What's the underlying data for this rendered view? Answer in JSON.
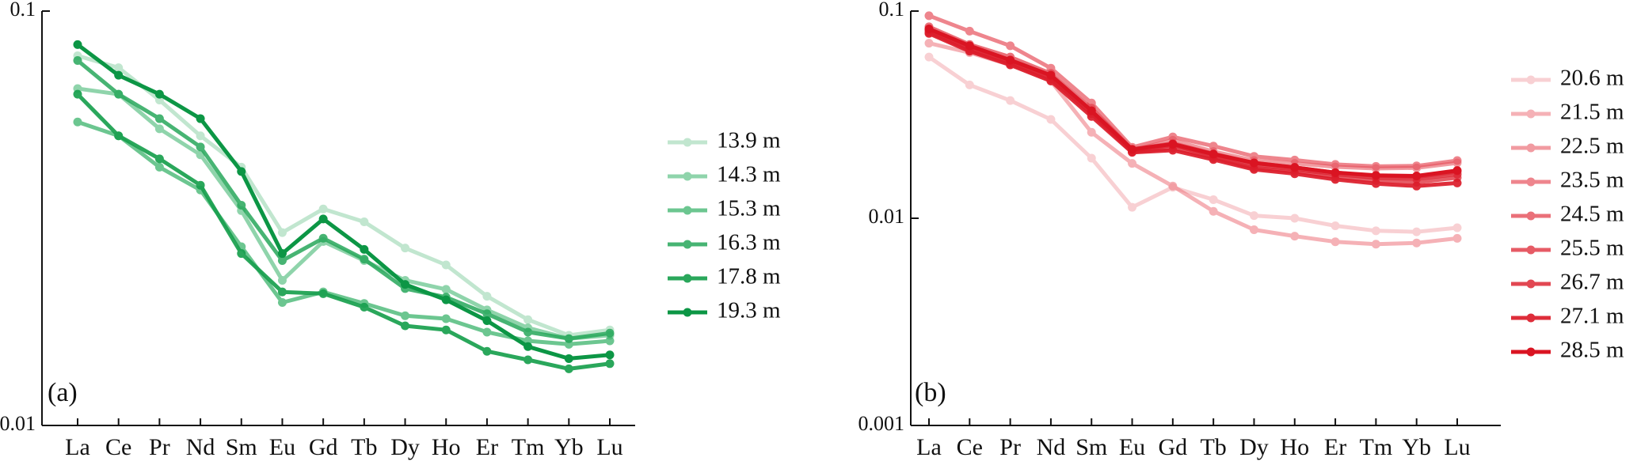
{
  "chart_data": [
    {
      "type": "line",
      "panel_label": "(a)",
      "log_y": true,
      "grid": false,
      "legend": "right",
      "categories": [
        "La",
        "Ce",
        "Pr",
        "Nd",
        "Sm",
        "Eu",
        "Gd",
        "Tb",
        "Dy",
        "Ho",
        "Er",
        "Tm",
        "Yb",
        "Lu"
      ],
      "ylim": [
        0.01,
        0.1
      ],
      "yticks": [
        {
          "value": 0.1,
          "label": "0.1"
        },
        {
          "value": 0.01,
          "label": "0.01"
        }
      ],
      "series": [
        {
          "name": "13.9 m",
          "color": "#8fd3a9",
          "opacity": 0.55,
          "values": [
            0.078,
            0.073,
            0.061,
            0.05,
            0.042,
            0.0292,
            0.0333,
            0.031,
            0.0268,
            0.0244,
            0.0205,
            0.018,
            0.0165,
            0.017
          ]
        },
        {
          "name": "14.3 m",
          "color": "#54be7f",
          "opacity": 0.65,
          "values": [
            0.065,
            0.063,
            0.052,
            0.045,
            0.033,
            0.0224,
            0.0278,
            0.025,
            0.0224,
            0.0213,
            0.019,
            0.0172,
            0.0162,
            0.0165
          ]
        },
        {
          "name": "15.3 m",
          "color": "#3cb46c",
          "opacity": 0.75,
          "values": [
            0.054,
            0.05,
            0.042,
            0.037,
            0.027,
            0.0198,
            0.021,
            0.0197,
            0.0184,
            0.0181,
            0.0168,
            0.016,
            0.0157,
            0.016
          ]
        },
        {
          "name": "16.3 m",
          "color": "#27a85b",
          "opacity": 0.85,
          "values": [
            0.076,
            0.063,
            0.055,
            0.047,
            0.034,
            0.025,
            0.0283,
            0.0252,
            0.0214,
            0.0204,
            0.0186,
            0.0168,
            0.0162,
            0.0167
          ]
        },
        {
          "name": "17.8 m",
          "color": "#18a04e",
          "opacity": 0.92,
          "values": [
            0.063,
            0.05,
            0.044,
            0.038,
            0.026,
            0.021,
            0.0208,
            0.0193,
            0.0174,
            0.017,
            0.0151,
            0.0144,
            0.0137,
            0.0141
          ]
        },
        {
          "name": "19.3 m",
          "color": "#0c9645",
          "opacity": 1.0,
          "values": [
            0.083,
            0.07,
            0.063,
            0.055,
            0.041,
            0.026,
            0.0315,
            0.0266,
            0.0219,
            0.0201,
            0.0179,
            0.0155,
            0.0145,
            0.0148
          ]
        }
      ]
    },
    {
      "type": "line",
      "panel_label": "(b)",
      "log_y": true,
      "grid": false,
      "legend": "right",
      "categories": [
        "La",
        "Ce",
        "Pr",
        "Nd",
        "Sm",
        "Eu",
        "Gd",
        "Tb",
        "Dy",
        "Ho",
        "Er",
        "Tm",
        "Yb",
        "Lu"
      ],
      "ylim": [
        0.001,
        0.1
      ],
      "yticks": [
        {
          "value": 0.1,
          "label": "0.1"
        },
        {
          "value": 0.01,
          "label": "0.01"
        },
        {
          "value": 0.001,
          "label": "0.001"
        }
      ],
      "series": [
        {
          "name": "20.6 m",
          "color": "#f3a3a8",
          "opacity": 0.5,
          "values": [
            0.06,
            0.044,
            0.037,
            0.03,
            0.0195,
            0.0113,
            0.0141,
            0.0123,
            0.0103,
            0.01,
            0.0092,
            0.0087,
            0.0086,
            0.009
          ]
        },
        {
          "name": "21.5 m",
          "color": "#ef7e86",
          "opacity": 0.6,
          "values": [
            0.07,
            0.063,
            0.055,
            0.046,
            0.026,
            0.0184,
            0.0143,
            0.0108,
            0.0088,
            0.0082,
            0.0077,
            0.0075,
            0.0076,
            0.008
          ]
        },
        {
          "name": "22.5 m",
          "color": "#eb6770",
          "opacity": 0.65,
          "values": [
            0.08,
            0.067,
            0.058,
            0.047,
            0.032,
            0.0213,
            0.0238,
            0.021,
            0.019,
            0.0184,
            0.0177,
            0.0174,
            0.0175,
            0.0185
          ]
        },
        {
          "name": "23.5 m",
          "color": "#e7525d",
          "opacity": 0.7,
          "values": [
            0.095,
            0.08,
            0.068,
            0.053,
            0.036,
            0.022,
            0.0247,
            0.0223,
            0.0199,
            0.0191,
            0.0182,
            0.0178,
            0.0179,
            0.019
          ]
        },
        {
          "name": "24.5 m",
          "color": "#e4414d",
          "opacity": 0.75,
          "values": [
            0.084,
            0.069,
            0.06,
            0.05,
            0.034,
            0.0215,
            0.023,
            0.0205,
            0.0185,
            0.0176,
            0.0166,
            0.016,
            0.0158,
            0.0168
          ]
        },
        {
          "name": "25.5 m",
          "color": "#e1333f",
          "opacity": 0.8,
          "values": [
            0.079,
            0.065,
            0.056,
            0.047,
            0.032,
            0.0209,
            0.0218,
            0.0196,
            0.0175,
            0.0168,
            0.0158,
            0.0152,
            0.0149,
            0.0157
          ]
        },
        {
          "name": "26.7 m",
          "color": "#de2734",
          "opacity": 0.85,
          "values": [
            0.081,
            0.066,
            0.057,
            0.048,
            0.033,
            0.0212,
            0.0225,
            0.02,
            0.018,
            0.0172,
            0.0163,
            0.0157,
            0.0155,
            0.0163
          ]
        },
        {
          "name": "27.1 m",
          "color": "#dc1c2a",
          "opacity": 0.92,
          "values": [
            0.078,
            0.064,
            0.055,
            0.046,
            0.031,
            0.0208,
            0.0213,
            0.0192,
            0.0172,
            0.0164,
            0.0154,
            0.0147,
            0.0143,
            0.0148
          ]
        },
        {
          "name": "28.5 m",
          "color": "#da1422",
          "opacity": 1.0,
          "values": [
            0.082,
            0.068,
            0.058,
            0.049,
            0.033,
            0.0215,
            0.0228,
            0.0204,
            0.0185,
            0.0176,
            0.0166,
            0.0161,
            0.016,
            0.017
          ]
        }
      ]
    }
  ]
}
